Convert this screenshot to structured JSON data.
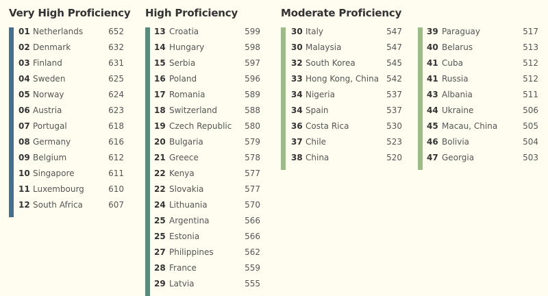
{
  "colors": {
    "very_high": "#44708f",
    "high": "#5a8a7a",
    "moderate": "#9dbb88"
  },
  "groups": [
    {
      "title": "Very High Proficiency",
      "color_key": "very_high",
      "columns": [
        [
          {
            "rank": "01",
            "country": "Netherlands",
            "score": "652"
          },
          {
            "rank": "02",
            "country": "Denmark",
            "score": "632"
          },
          {
            "rank": "03",
            "country": "Finland",
            "score": "631"
          },
          {
            "rank": "04",
            "country": "Sweden",
            "score": "625"
          },
          {
            "rank": "05",
            "country": "Norway",
            "score": "624"
          },
          {
            "rank": "06",
            "country": "Austria",
            "score": "623"
          },
          {
            "rank": "07",
            "country": "Portugal",
            "score": "618"
          },
          {
            "rank": "08",
            "country": "Germany",
            "score": "616"
          },
          {
            "rank": "09",
            "country": "Belgium",
            "score": "612"
          },
          {
            "rank": "10",
            "country": "Singapore",
            "score": "611"
          },
          {
            "rank": "11",
            "country": "Luxembourg",
            "score": "610"
          },
          {
            "rank": "12",
            "country": "South Africa",
            "score": "607"
          }
        ]
      ]
    },
    {
      "title": "High Proficiency",
      "color_key": "high",
      "columns": [
        [
          {
            "rank": "13",
            "country": "Croatia",
            "score": "599"
          },
          {
            "rank": "14",
            "country": "Hungary",
            "score": "598"
          },
          {
            "rank": "15",
            "country": "Serbia",
            "score": "597"
          },
          {
            "rank": "16",
            "country": "Poland",
            "score": "596"
          },
          {
            "rank": "17",
            "country": "Romania",
            "score": "589"
          },
          {
            "rank": "18",
            "country": "Switzerland",
            "score": "588"
          },
          {
            "rank": "19",
            "country": "Czech Republic",
            "score": "580"
          },
          {
            "rank": "20",
            "country": "Bulgaria",
            "score": "579"
          },
          {
            "rank": "21",
            "country": "Greece",
            "score": "578"
          },
          {
            "rank": "22",
            "country": "Kenya",
            "score": "577"
          },
          {
            "rank": "22",
            "country": "Slovakia",
            "score": "577"
          },
          {
            "rank": "24",
            "country": "Lithuania",
            "score": "570"
          },
          {
            "rank": "25",
            "country": "Argentina",
            "score": "566"
          },
          {
            "rank": "25",
            "country": "Estonia",
            "score": "566"
          },
          {
            "rank": "27",
            "country": "Philippines",
            "score": "562"
          },
          {
            "rank": "28",
            "country": "France",
            "score": "559"
          },
          {
            "rank": "29",
            "country": "Latvia",
            "score": "555"
          }
        ]
      ]
    },
    {
      "title": "Moderate Proficiency",
      "color_key": "moderate",
      "columns": [
        [
          {
            "rank": "30",
            "country": "Italy",
            "score": "547"
          },
          {
            "rank": "30",
            "country": "Malaysia",
            "score": "547"
          },
          {
            "rank": "32",
            "country": "South Korea",
            "score": "545"
          },
          {
            "rank": "33",
            "country": "Hong Kong, China",
            "score": "542"
          },
          {
            "rank": "34",
            "country": "Nigeria",
            "score": "537"
          },
          {
            "rank": "34",
            "country": "Spain",
            "score": "537"
          },
          {
            "rank": "36",
            "country": "Costa Rica",
            "score": "530"
          },
          {
            "rank": "37",
            "country": "Chile",
            "score": "523"
          },
          {
            "rank": "38",
            "country": "China",
            "score": "520"
          }
        ],
        [
          {
            "rank": "39",
            "country": "Paraguay",
            "score": "517"
          },
          {
            "rank": "40",
            "country": "Belarus",
            "score": "513"
          },
          {
            "rank": "41",
            "country": "Cuba",
            "score": "512"
          },
          {
            "rank": "41",
            "country": "Russia",
            "score": "512"
          },
          {
            "rank": "43",
            "country": "Albania",
            "score": "511"
          },
          {
            "rank": "44",
            "country": "Ukraine",
            "score": "506"
          },
          {
            "rank": "45",
            "country": "Macau, China",
            "score": "505"
          },
          {
            "rank": "46",
            "country": "Bolivia",
            "score": "504"
          },
          {
            "rank": "47",
            "country": "Georgia",
            "score": "503"
          }
        ]
      ]
    }
  ]
}
